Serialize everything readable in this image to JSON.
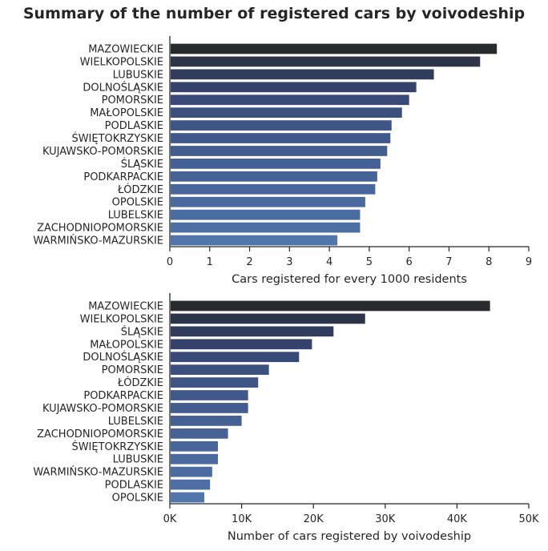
{
  "figure": {
    "title": "Summary of the number of registered cars by voivodeship"
  },
  "chart_data": [
    {
      "type": "bar",
      "orientation": "horizontal",
      "xlabel": "Cars registered for every 1000 residents",
      "ylabel": "",
      "xlim": [
        0,
        9
      ],
      "xticks": [
        "0",
        "1",
        "2",
        "3",
        "4",
        "5",
        "6",
        "7",
        "8",
        "9"
      ],
      "grid": false,
      "palette": [
        "#292a2d",
        "#2d3348",
        "#313c5d",
        "#35436c",
        "#394a78",
        "#3c507f",
        "#3f5585",
        "#41598a",
        "#435d8f",
        "#456092",
        "#476396",
        "#486699",
        "#4a699d",
        "#4b6ca1",
        "#4d6fa4",
        "#5275ab"
      ],
      "categories": [
        "MAZOWIECKIE",
        "WIELKOPOLSKIE",
        "LUBUSKIE",
        "DOLNOŚLĄSKIE",
        "POMORSKIE",
        "MAŁOPOLSKIE",
        "PODLASKIE",
        "ŚWIĘTOKRZYSKIE",
        "KUJAWSKO-POMORSKIE",
        "ŚLĄSKIE",
        "PODKARPACKIE",
        "ŁÓDZKIE",
        "OPOLSKIE",
        "LUBELSKIE",
        "ZACHODNIOPOMORSKIE",
        "WARMIŃSKO-MAZURSKIE"
      ],
      "values": [
        8.2,
        7.78,
        6.62,
        6.18,
        6.0,
        5.82,
        5.56,
        5.53,
        5.45,
        5.28,
        5.2,
        5.15,
        4.9,
        4.77,
        4.77,
        4.2
      ]
    },
    {
      "type": "bar",
      "orientation": "horizontal",
      "xlabel": "Number of cars registered by voivodeship",
      "ylabel": "",
      "xlim": [
        0,
        50000
      ],
      "xticks": [
        "0K",
        "10K",
        "20K",
        "30K",
        "40K",
        "50K"
      ],
      "grid": false,
      "palette": [
        "#292a2d",
        "#2d3348",
        "#313c5d",
        "#35436c",
        "#394a78",
        "#3c507f",
        "#3f5585",
        "#41598a",
        "#435d8f",
        "#456092",
        "#476396",
        "#486699",
        "#4a699d",
        "#4b6ca1",
        "#4d6fa4",
        "#5275ab"
      ],
      "categories": [
        "MAZOWIECKIE",
        "WIELKOPOLSKIE",
        "ŚLĄSKIE",
        "MAŁOPOLSKIE",
        "DOLNOŚLĄSKIE",
        "POMORSKIE",
        "ŁÓDZKIE",
        "PODKARPACKIE",
        "KUJAWSKO-POMORSKIE",
        "LUBELSKIE",
        "ZACHODNIOPOMORSKIE",
        "ŚWIĘTOKRZYSKIE",
        "LUBUSKIE",
        "WARMIŃSKO-MAZURSKIE",
        "PODLASKIE",
        "OPOLSKIE"
      ],
      "values": [
        44600,
        27200,
        22800,
        19800,
        18000,
        13800,
        12300,
        10900,
        10900,
        10000,
        8100,
        6700,
        6700,
        5900,
        5600,
        4800
      ]
    }
  ]
}
